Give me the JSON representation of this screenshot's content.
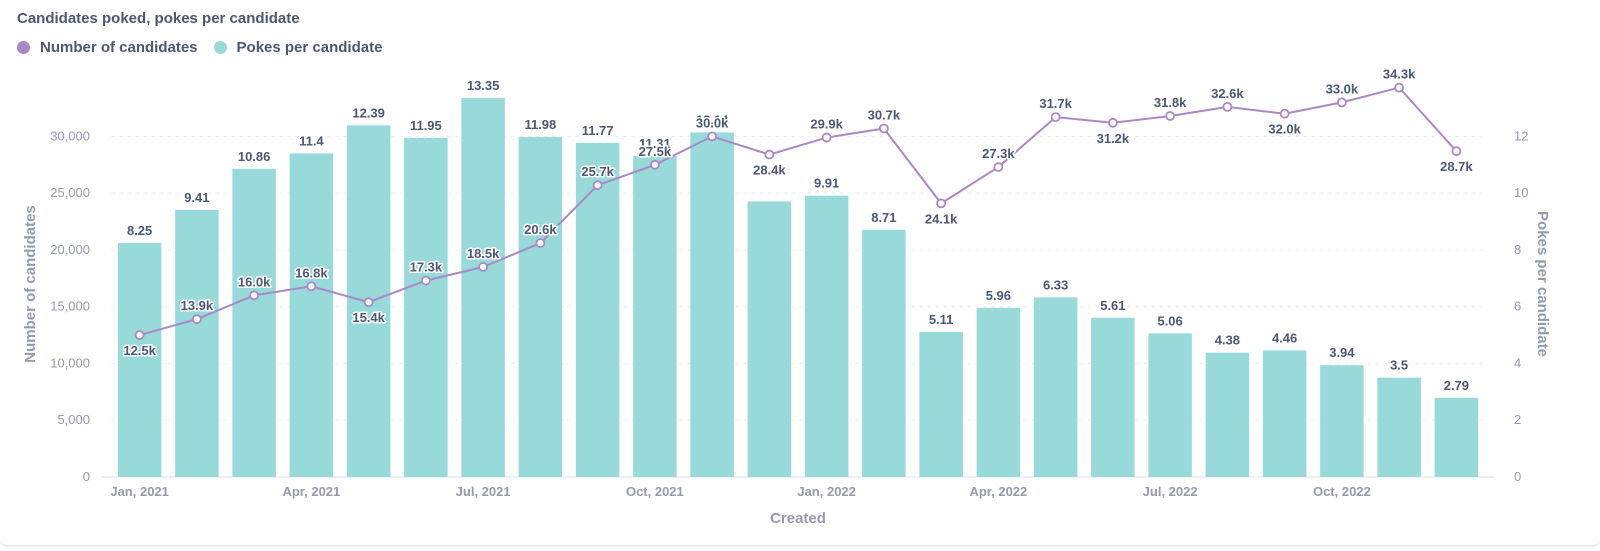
{
  "chart_data": {
    "type": "bar",
    "title": "Candidates poked, pokes per candidate",
    "xlabel": "Created",
    "ylabel": "Number of candidates",
    "y2label": "Pokes per candidate",
    "ylim": [
      0,
      34000
    ],
    "y2lim": [
      0,
      13.6
    ],
    "yticks": [
      "0",
      "5,000",
      "10,000",
      "15,000",
      "20,000",
      "25,000",
      "30,000"
    ],
    "y2ticks": [
      "0",
      "2",
      "4",
      "6",
      "8",
      "10",
      "12"
    ],
    "x_tick_labels": [
      "Jan, 2021",
      "Apr, 2021",
      "Jul, 2021",
      "Oct, 2021",
      "Jan, 2022",
      "Apr, 2022",
      "Jul, 2022",
      "Oct, 2022"
    ],
    "x_tick_indices": [
      0,
      3,
      6,
      9,
      12,
      15,
      18,
      21
    ],
    "categories": [
      "Jan 2021",
      "Feb 2021",
      "Mar 2021",
      "Apr 2021",
      "May 2021",
      "Jun 2021",
      "Jul 2021",
      "Aug 2021",
      "Sep 2021",
      "Oct 2021",
      "Nov 2021",
      "Dec 2021",
      "Jan 2022",
      "Feb 2022",
      "Mar 2022",
      "Apr 2022",
      "May 2022",
      "Jun 2022",
      "Jul 2022",
      "Aug 2022",
      "Sep 2022",
      "Oct 2022",
      "Nov 2022",
      "Dec 2022"
    ],
    "grid": true,
    "legend_position": "top-left",
    "series": [
      {
        "name": "Number of candidates",
        "type": "line",
        "axis": "left",
        "color": "#a989c5",
        "values": [
          12500,
          13900,
          16000,
          16800,
          15400,
          17300,
          18500,
          20600,
          25700,
          27500,
          30000,
          28400,
          29900,
          30700,
          24100,
          27300,
          31700,
          31200,
          31800,
          32600,
          32000,
          33000,
          34300,
          28700
        ],
        "labels": [
          "12.5k",
          "13.9k",
          "16.0k",
          "16.8k",
          "15.4k",
          "17.3k",
          "18.5k",
          "20.6k",
          "25.7k",
          "27.5k",
          "30.0k",
          "28.4k",
          "29.9k",
          "30.7k",
          "24.1k",
          "27.3k",
          "31.7k",
          "31.2k",
          "31.8k",
          "32.6k",
          "32.0k",
          "33.0k",
          "34.3k",
          "28.7k"
        ]
      },
      {
        "name": "Pokes per candidate",
        "type": "bar",
        "axis": "right",
        "color": "#98d9d9",
        "values": [
          8.25,
          9.41,
          10.86,
          11.4,
          12.39,
          11.95,
          13.35,
          11.98,
          11.77,
          11.31,
          12.14,
          9.71,
          9.91,
          8.71,
          5.11,
          5.96,
          6.33,
          5.61,
          5.06,
          4.38,
          4.46,
          3.94,
          3.5,
          2.79
        ],
        "labels": [
          "8.25",
          "9.41",
          "10.86",
          "11.4",
          "12.39",
          "11.95",
          "13.35",
          "11.98",
          "11.77",
          "11.31",
          "12.14",
          "",
          "9.91",
          "8.71",
          "5.11",
          "5.96",
          "6.33",
          "5.61",
          "5.06",
          "4.38",
          "4.46",
          "3.94",
          "3.5",
          "2.79"
        ]
      }
    ]
  },
  "colors": {
    "grid": "#eeeff2",
    "axis_text": "#949aab",
    "label_text": "#4c5773"
  }
}
